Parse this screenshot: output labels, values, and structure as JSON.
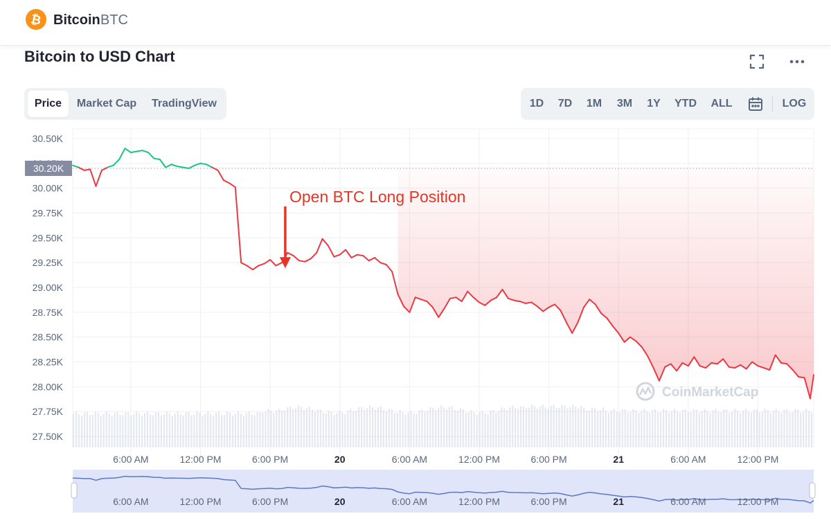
{
  "header": {
    "coin_name": "Bitcoin",
    "coin_symbol": "BTC",
    "logo_icon": "bitcoin-icon",
    "logo_color": "#f7931a"
  },
  "chart_title": "Bitcoin to USD Chart",
  "toolbar": {
    "tabs": [
      "Price",
      "Market Cap",
      "TradingView"
    ],
    "active_tab": "Price",
    "ranges": [
      "1D",
      "7D",
      "1M",
      "3M",
      "1Y",
      "YTD",
      "ALL"
    ],
    "log_label": "LOG",
    "calendar_icon": "calendar-icon",
    "fullscreen_icon": "fullscreen-icon",
    "more_icon": "more-icon"
  },
  "annotation": {
    "text": "Open BTC Long Position",
    "color": "#e53524"
  },
  "chart_data": {
    "type": "line",
    "y_ticks": [
      "30.50K",
      "30.25K",
      "30.00K",
      "29.75K",
      "29.50K",
      "29.25K",
      "29.00K",
      "28.75K",
      "28.50K",
      "28.25K",
      "28.00K",
      "27.75K",
      "27.50K"
    ],
    "ylim": [
      27500,
      30500
    ],
    "current_price_label": "30.20K",
    "reference_price": 30200,
    "x_tick_labels": [
      "6:00 AM",
      "12:00 PM",
      "6:00 PM",
      "20",
      "6:00 AM",
      "12:00 PM",
      "6:00 PM",
      "21",
      "6:00 AM",
      "12:00 PM"
    ],
    "x_tick_hours": [
      6,
      12,
      18,
      24,
      30,
      36,
      42,
      48,
      54,
      60
    ],
    "x_range_hours": [
      1,
      64.8
    ],
    "watermark": "CoinMarketCap",
    "colors": {
      "up": "#16c784",
      "down": "#ea3943",
      "volume": "#cfd6e4",
      "navigator": "#d7dcf7",
      "navigator_line": "#5a78c6"
    },
    "series": [
      {
        "x": [
          1,
          1.5,
          2,
          2.5,
          3,
          3.5,
          4,
          4.5,
          5,
          5.5,
          6,
          6.5,
          7,
          7.5,
          8,
          8.5,
          9,
          9.5,
          10,
          10.5,
          11,
          11.5,
          12,
          12.5,
          13,
          13.5,
          14,
          14.5,
          15,
          15.5,
          16,
          16.5,
          17,
          17.5,
          18,
          18.5,
          19,
          19.5,
          20,
          20.5,
          21,
          21.5,
          22,
          22.5,
          23,
          23.5,
          24,
          24.5,
          25,
          25.5,
          26,
          26.5,
          27,
          27.5,
          28,
          28.5,
          29,
          29.5,
          30,
          30.5,
          31,
          31.5,
          32,
          32.5,
          33,
          33.5,
          34,
          34.5,
          35,
          35.5,
          36,
          36.5,
          37,
          37.5,
          38,
          38.5,
          39,
          39.5,
          40,
          40.5,
          41,
          41.5,
          42,
          42.5,
          43,
          43.5,
          44,
          44.5,
          45,
          45.5,
          46,
          46.5,
          47,
          47.5,
          48,
          48.5,
          49,
          49.5,
          50,
          50.5,
          51,
          51.5,
          52,
          52.5,
          53,
          53.5,
          54,
          54.5,
          55,
          55.5,
          56,
          56.5,
          57,
          57.5,
          58,
          58.5,
          59,
          59.5,
          60,
          60.5,
          61,
          61.5,
          62,
          62.5,
          63,
          63.5,
          64,
          64.5,
          64.8
        ],
        "values": [
          30230,
          30210,
          30180,
          30190,
          30020,
          30180,
          30210,
          30230,
          30290,
          30400,
          30360,
          30370,
          30380,
          30360,
          30300,
          30290,
          30210,
          30240,
          30220,
          30210,
          30200,
          30230,
          30250,
          30240,
          30210,
          30180,
          30080,
          30050,
          30010,
          29250,
          29220,
          29180,
          29220,
          29240,
          29280,
          29220,
          29250,
          29350,
          29320,
          29270,
          29260,
          29290,
          29350,
          29490,
          29420,
          29310,
          29330,
          29380,
          29300,
          29330,
          29320,
          29270,
          29300,
          29250,
          29230,
          29160,
          28930,
          28810,
          28750,
          28900,
          28880,
          28860,
          28800,
          28700,
          28790,
          28890,
          28900,
          28860,
          28960,
          28900,
          28850,
          28820,
          28870,
          28900,
          28980,
          28890,
          28870,
          28860,
          28840,
          28850,
          28810,
          28760,
          28800,
          28830,
          28770,
          28650,
          28540,
          28650,
          28800,
          28880,
          28830,
          28740,
          28690,
          28610,
          28540,
          28450,
          28500,
          28460,
          28400,
          28310,
          28190,
          28060,
          28200,
          28230,
          28160,
          28240,
          28210,
          28300,
          28210,
          28190,
          28240,
          28230,
          28280,
          28200,
          28190,
          28220,
          28180,
          28250,
          28210,
          28190,
          28170,
          28320,
          28240,
          28230,
          28170,
          28100,
          28090,
          27880,
          28120
        ]
      }
    ],
    "annotation_arrow": {
      "x": 19.3,
      "value": 29180
    }
  }
}
